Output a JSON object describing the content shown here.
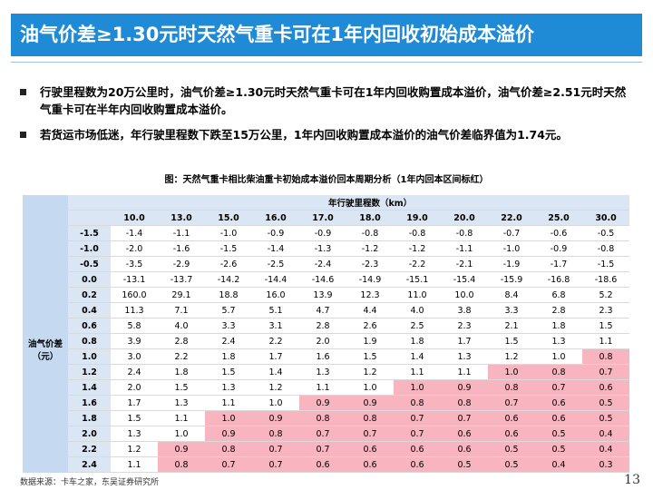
{
  "header": {
    "title": "油气价差≥1.30元时天然气重卡可在1年内回收初始成本溢价"
  },
  "bullets": [
    "行驶里程数为20万公里时，油气价差≥1.30元时天然气重卡可在1年内回收购置成本溢价，油气价差≥2.51元时天然气重卡可在半年内回收购置成本溢价。",
    "若货运市场低迷，年行驶里程数下跌至15万公里，1年内回收购置成本溢价的油气价差临界值为1.74元。"
  ],
  "table": {
    "caption": "图：天然气重卡相比柴油重卡初始成本溢价回本周期分析（1年内回本区间标红）",
    "column_group_label": "年行驶里程数（km）",
    "row_group_label": [
      "油气价差",
      "（元）"
    ],
    "columns": [
      "10.0",
      "13.0",
      "15.0",
      "16.0",
      "17.0",
      "18.0",
      "19.0",
      "20.0",
      "22.0",
      "25.0",
      "30.0"
    ],
    "rows": [
      {
        "label": "-1.5",
        "cells": [
          "-1.4",
          "-1.1",
          "-1.0",
          "-0.9",
          "-0.9",
          "-0.8",
          "-0.8",
          "-0.8",
          "-0.7",
          "-0.6",
          "-0.5"
        ],
        "highlight": [
          false,
          false,
          false,
          false,
          false,
          false,
          false,
          false,
          false,
          false,
          false
        ]
      },
      {
        "label": "-1.0",
        "cells": [
          "-2.0",
          "-1.6",
          "-1.5",
          "-1.4",
          "-1.3",
          "-1.2",
          "-1.2",
          "-1.1",
          "-1.0",
          "-0.9",
          "-0.8"
        ],
        "highlight": [
          false,
          false,
          false,
          false,
          false,
          false,
          false,
          false,
          false,
          false,
          false
        ]
      },
      {
        "label": "-0.5",
        "cells": [
          "-3.5",
          "-2.9",
          "-2.6",
          "-2.5",
          "-2.4",
          "-2.3",
          "-2.2",
          "-2.1",
          "-1.9",
          "-1.7",
          "-1.5"
        ],
        "highlight": [
          false,
          false,
          false,
          false,
          false,
          false,
          false,
          false,
          false,
          false,
          false
        ]
      },
      {
        "label": "0.0",
        "cells": [
          "-13.1",
          "-13.7",
          "-14.2",
          "-14.4",
          "-14.6",
          "-14.9",
          "-15.1",
          "-15.4",
          "-15.9",
          "-16.8",
          "-18.6"
        ],
        "highlight": [
          false,
          false,
          false,
          false,
          false,
          false,
          false,
          false,
          false,
          false,
          false
        ]
      },
      {
        "label": "0.2",
        "cells": [
          "160.0",
          "29.1",
          "18.8",
          "16.0",
          "13.9",
          "12.3",
          "11.0",
          "10.0",
          "8.4",
          "6.8",
          "5.2"
        ],
        "highlight": [
          false,
          false,
          false,
          false,
          false,
          false,
          false,
          false,
          false,
          false,
          false
        ]
      },
      {
        "label": "0.4",
        "cells": [
          "11.3",
          "7.1",
          "5.7",
          "5.1",
          "4.7",
          "4.4",
          "4.0",
          "3.8",
          "3.3",
          "2.8",
          "2.3"
        ],
        "highlight": [
          false,
          false,
          false,
          false,
          false,
          false,
          false,
          false,
          false,
          false,
          false
        ]
      },
      {
        "label": "0.6",
        "cells": [
          "5.8",
          "4.0",
          "3.3",
          "3.1",
          "2.8",
          "2.6",
          "2.5",
          "2.3",
          "2.1",
          "1.8",
          "1.5"
        ],
        "highlight": [
          false,
          false,
          false,
          false,
          false,
          false,
          false,
          false,
          false,
          false,
          false
        ]
      },
      {
        "label": "0.8",
        "cells": [
          "3.9",
          "2.8",
          "2.4",
          "2.2",
          "2.0",
          "1.9",
          "1.8",
          "1.7",
          "1.5",
          "1.3",
          "1.1"
        ],
        "highlight": [
          false,
          false,
          false,
          false,
          false,
          false,
          false,
          false,
          false,
          false,
          false
        ]
      },
      {
        "label": "1.0",
        "cells": [
          "3.0",
          "2.2",
          "1.8",
          "1.7",
          "1.6",
          "1.5",
          "1.4",
          "1.3",
          "1.2",
          "1.0",
          "0.8"
        ],
        "highlight": [
          false,
          false,
          false,
          false,
          false,
          false,
          false,
          false,
          false,
          false,
          true
        ]
      },
      {
        "label": "1.2",
        "cells": [
          "2.4",
          "1.8",
          "1.5",
          "1.4",
          "1.3",
          "1.2",
          "1.1",
          "1.1",
          "1.0",
          "0.8",
          "0.7"
        ],
        "highlight": [
          false,
          false,
          false,
          false,
          false,
          false,
          false,
          false,
          true,
          true,
          true
        ]
      },
      {
        "label": "1.4",
        "cells": [
          "2.0",
          "1.5",
          "1.3",
          "1.2",
          "1.1",
          "1.0",
          "1.0",
          "0.9",
          "0.8",
          "0.7",
          "0.6"
        ],
        "highlight": [
          false,
          false,
          false,
          false,
          false,
          false,
          true,
          true,
          true,
          true,
          true
        ]
      },
      {
        "label": "1.6",
        "cells": [
          "1.7",
          "1.3",
          "1.1",
          "1.0",
          "0.9",
          "0.9",
          "0.8",
          "0.8",
          "0.7",
          "0.6",
          "0.5"
        ],
        "highlight": [
          false,
          false,
          false,
          false,
          true,
          true,
          true,
          true,
          true,
          true,
          true
        ]
      },
      {
        "label": "1.8",
        "cells": [
          "1.5",
          "1.1",
          "1.0",
          "0.9",
          "0.8",
          "0.8",
          "0.7",
          "0.7",
          "0.6",
          "0.6",
          "0.5"
        ],
        "highlight": [
          false,
          false,
          true,
          true,
          true,
          true,
          true,
          true,
          true,
          true,
          true
        ]
      },
      {
        "label": "2.0",
        "cells": [
          "1.3",
          "1.0",
          "0.9",
          "0.8",
          "0.7",
          "0.7",
          "0.7",
          "0.6",
          "0.6",
          "0.5",
          "0.4"
        ],
        "highlight": [
          false,
          false,
          true,
          true,
          true,
          true,
          true,
          true,
          true,
          true,
          true
        ]
      },
      {
        "label": "2.2",
        "cells": [
          "1.2",
          "0.9",
          "0.8",
          "0.7",
          "0.7",
          "0.6",
          "0.6",
          "0.6",
          "0.5",
          "0.5",
          "0.4"
        ],
        "highlight": [
          false,
          true,
          true,
          true,
          true,
          true,
          true,
          true,
          true,
          true,
          true
        ]
      },
      {
        "label": "2.4",
        "cells": [
          "1.1",
          "0.8",
          "0.7",
          "0.7",
          "0.6",
          "0.6",
          "0.6",
          "0.5",
          "0.5",
          "0.4",
          "0.3"
        ],
        "highlight": [
          false,
          true,
          true,
          true,
          true,
          true,
          true,
          true,
          true,
          true,
          true
        ]
      }
    ]
  },
  "footer": {
    "source": "数据来源：卡车之家，东吴证券研究所",
    "page": "13"
  }
}
